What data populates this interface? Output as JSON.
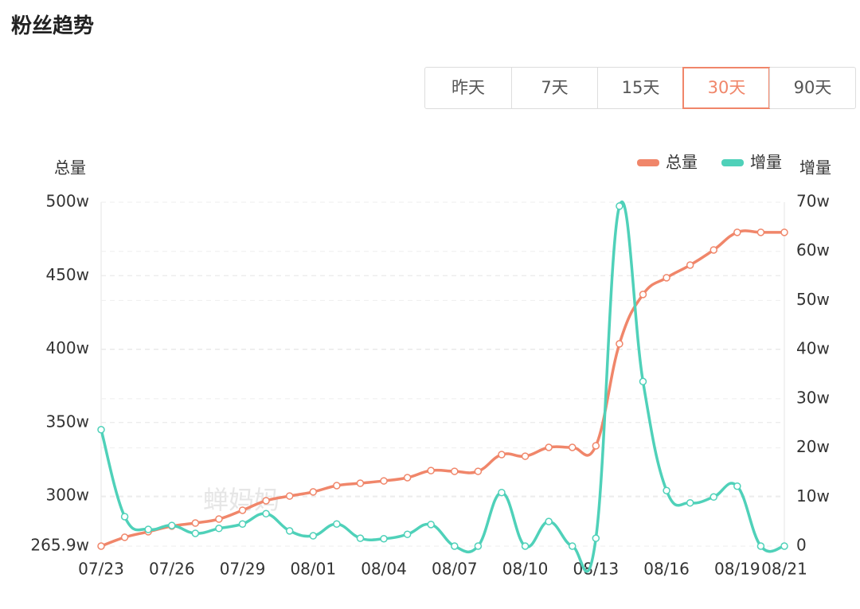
{
  "header": {
    "title": "粉丝趋势"
  },
  "tabs": {
    "items": [
      "昨天",
      "7天",
      "15天",
      "30天",
      "90天"
    ],
    "active": 3
  },
  "watermark": "蝉妈妈",
  "chart_data": {
    "type": "line",
    "y_label": "总量",
    "y2_label": "增量",
    "categories": [
      "07/23",
      null,
      null,
      "07/26",
      null,
      null,
      "07/29",
      null,
      null,
      "08/01",
      null,
      null,
      "08/04",
      null,
      null,
      "08/07",
      null,
      null,
      "08/10",
      null,
      null,
      "08/13",
      null,
      null,
      "08/16",
      null,
      null,
      "08/19",
      null,
      "08/21"
    ],
    "series": [
      {
        "name": "总量",
        "color": "#f0866a",
        "values": [
          265.9,
          271.9,
          275.7,
          279.5,
          281.6,
          284.3,
          290.3,
          296.8,
          300.0,
          302.8,
          307.1,
          308.7,
          310.3,
          312.5,
          317.3,
          316.8,
          316.8,
          328.2,
          327.1,
          333.1,
          333.1,
          334.2,
          403.6,
          437.2,
          448.6,
          457.2,
          467.5,
          479.5,
          479.5,
          479.5
        ]
      },
      {
        "name": "增量",
        "color": "#4fd1b9",
        "axis": "y2",
        "values": [
          23.7,
          6.0,
          3.4,
          4.2,
          2.6,
          3.6,
          4.5,
          6.6,
          3.1,
          2.1,
          4.5,
          1.6,
          1.5,
          2.4,
          4.4,
          0,
          0,
          10.9,
          0,
          5.0,
          0,
          1.6,
          69.2,
          33.5,
          11.3,
          8.8,
          10.0,
          12.2,
          0,
          0
        ]
      }
    ],
    "ylim": [
      265.9,
      500
    ],
    "yticks": [
      {
        "value": 265.9,
        "label": "265.9w"
      },
      {
        "value": 300,
        "label": "300w"
      },
      {
        "value": 350,
        "label": "350w"
      },
      {
        "value": 400,
        "label": "400w"
      },
      {
        "value": 450,
        "label": "450w"
      },
      {
        "value": 500,
        "label": "500w"
      }
    ],
    "y2lim": [
      0,
      70
    ],
    "y2ticks": [
      0,
      {
        "value": 10,
        "label": "10w"
      },
      {
        "value": 20,
        "label": "20w"
      },
      {
        "value": 30,
        "label": "30w"
      },
      {
        "value": 40,
        "label": "40w"
      },
      {
        "value": 50,
        "label": "50w"
      },
      {
        "value": 60,
        "label": "60w"
      },
      {
        "value": 70,
        "label": "70w"
      }
    ],
    "grid": true,
    "legend": "top-right"
  }
}
